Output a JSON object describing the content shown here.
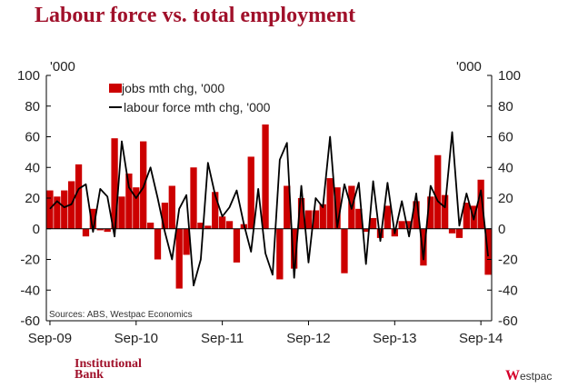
{
  "title": "Labour force vs. total employment",
  "brand": {
    "line1": "Institutional",
    "line2": "Bank"
  },
  "logo": {
    "initial": "W",
    "rest": "estpac"
  },
  "colors": {
    "title": "#a0102a",
    "bar": "#cc0000",
    "line": "#000000",
    "brand": "#a0102a",
    "logo": "#d5002b"
  },
  "chart_data": {
    "type": "bar",
    "unit_left": "'000",
    "unit_right": "'000",
    "source": "Sources: ABS, Westpac Economics",
    "ylim": [
      -60,
      100
    ],
    "yticks": [
      -60,
      -40,
      -20,
      0,
      20,
      40,
      60,
      80,
      100
    ],
    "grid": false,
    "legend_position": "top-left",
    "x_tick_labels": [
      "Sep-09",
      "Sep-10",
      "Sep-11",
      "Sep-12",
      "Sep-13",
      "Sep-14"
    ],
    "x_tick_index": [
      0,
      12,
      24,
      36,
      48,
      60
    ],
    "series": [
      {
        "name": "jobs mth chg, '000",
        "type": "bar",
        "color": "#cc0000",
        "values": [
          25,
          21,
          25,
          31,
          42,
          -5,
          13,
          -1,
          -2,
          59,
          21,
          36,
          27,
          57,
          4,
          -20,
          17,
          28,
          -39,
          -17,
          40,
          4,
          2,
          24,
          8,
          5,
          -22,
          3,
          47,
          0,
          68,
          0,
          -33,
          28,
          -26,
          20,
          12,
          12,
          16,
          33,
          27,
          -29,
          28,
          13,
          -2,
          7,
          -6,
          15,
          -5,
          5,
          5,
          18,
          -24,
          21,
          48,
          22,
          -3,
          -6,
          17,
          15,
          32,
          -30
        ]
      },
      {
        "name": "labour force mth chg, '000",
        "type": "line",
        "color": "#000000",
        "values": [
          13,
          18,
          14,
          16,
          26,
          29,
          -2,
          26,
          21,
          -5,
          57,
          27,
          20,
          27,
          40,
          20,
          -2,
          -20,
          13,
          22,
          -37,
          -20,
          43,
          22,
          8,
          14,
          25,
          3,
          -15,
          26,
          -16,
          -30,
          45,
          56,
          -32,
          28,
          -22,
          20,
          14,
          60,
          1,
          29,
          13,
          30,
          -23,
          31,
          -8,
          30,
          -3,
          18,
          -5,
          23,
          -20,
          28,
          18,
          14,
          63,
          2,
          23,
          6,
          25,
          -18
        ]
      }
    ]
  }
}
